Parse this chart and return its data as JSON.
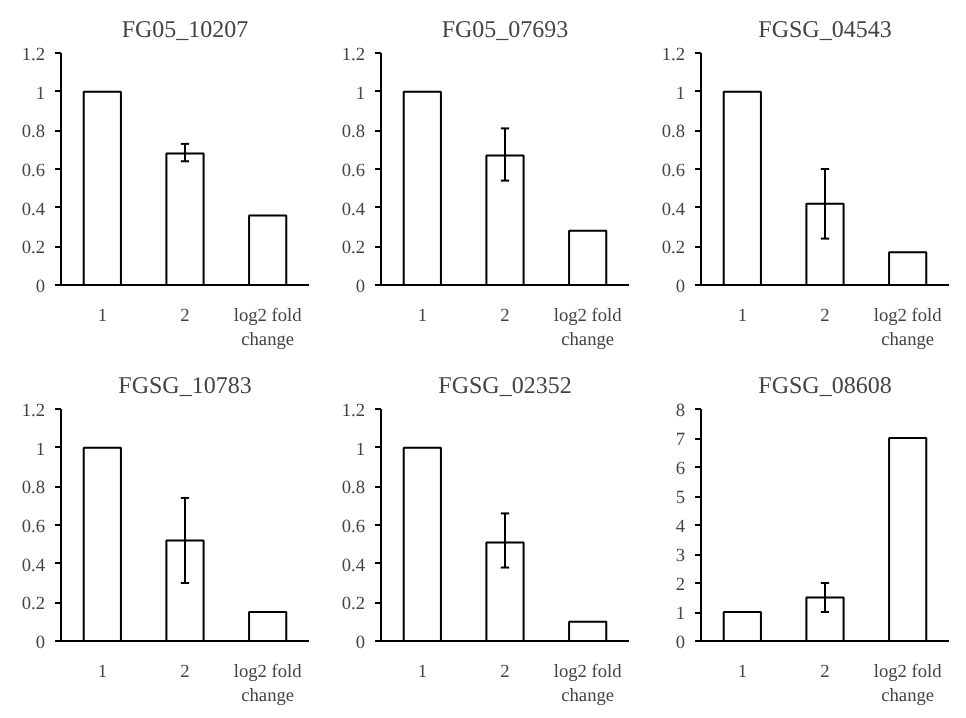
{
  "chart_data": [
    {
      "type": "bar",
      "title": "FG05_10207",
      "categories": [
        "1",
        "2",
        "log2 fold change"
      ],
      "values": [
        1,
        0.68,
        0.36
      ],
      "errors": [
        null,
        [
          0.64,
          0.73
        ],
        null
      ],
      "color": "#ffffff",
      "ylim": [
        0,
        1.2
      ],
      "yticks": [
        0,
        0.2,
        0.4,
        0.6,
        0.8,
        1,
        1.2
      ]
    },
    {
      "type": "bar",
      "title": "FG05_07693",
      "categories": [
        "1",
        "2",
        "log2 fold change"
      ],
      "values": [
        1,
        0.67,
        0.28
      ],
      "errors": [
        null,
        [
          0.54,
          0.81
        ],
        null
      ],
      "color": "#ffffff",
      "ylim": [
        0,
        1.2
      ],
      "yticks": [
        0,
        0.2,
        0.4,
        0.6,
        0.8,
        1,
        1.2
      ]
    },
    {
      "type": "bar",
      "title": "FGSG_04543",
      "categories": [
        "1",
        "2",
        "log2 fold change"
      ],
      "values": [
        1,
        0.42,
        0.17
      ],
      "errors": [
        null,
        [
          0.24,
          0.6
        ],
        null
      ],
      "color": "#ffffff",
      "ylim": [
        0,
        1.2
      ],
      "yticks": [
        0,
        0.2,
        0.4,
        0.6,
        0.8,
        1,
        1.2
      ]
    },
    {
      "type": "bar",
      "title": "FGSG_10783",
      "categories": [
        "1",
        "2",
        "log2 fold change"
      ],
      "values": [
        1,
        0.52,
        0.15
      ],
      "errors": [
        null,
        [
          0.3,
          0.74
        ],
        null
      ],
      "color": "#ffffff",
      "ylim": [
        0,
        1.2
      ],
      "yticks": [
        0,
        0.2,
        0.4,
        0.6,
        0.8,
        1,
        1.2
      ]
    },
    {
      "type": "bar",
      "title": "FGSG_02352",
      "categories": [
        "1",
        "2",
        "log2 fold change"
      ],
      "values": [
        1,
        0.51,
        0.1
      ],
      "errors": [
        null,
        [
          0.38,
          0.66
        ],
        null
      ],
      "color": "#ffffff",
      "ylim": [
        0,
        1.2
      ],
      "yticks": [
        0,
        0.2,
        0.4,
        0.6,
        0.8,
        1,
        1.2
      ]
    },
    {
      "type": "bar",
      "title": "FGSG_08608",
      "categories": [
        "1",
        "2",
        "log2 fold change"
      ],
      "values": [
        1,
        1.5,
        7.0
      ],
      "errors": [
        null,
        [
          1.0,
          2.0
        ],
        null
      ],
      "color": "#ffffff",
      "ylim": [
        0,
        8
      ],
      "yticks": [
        0,
        1,
        2,
        3,
        4,
        5,
        6,
        7,
        8
      ]
    }
  ]
}
